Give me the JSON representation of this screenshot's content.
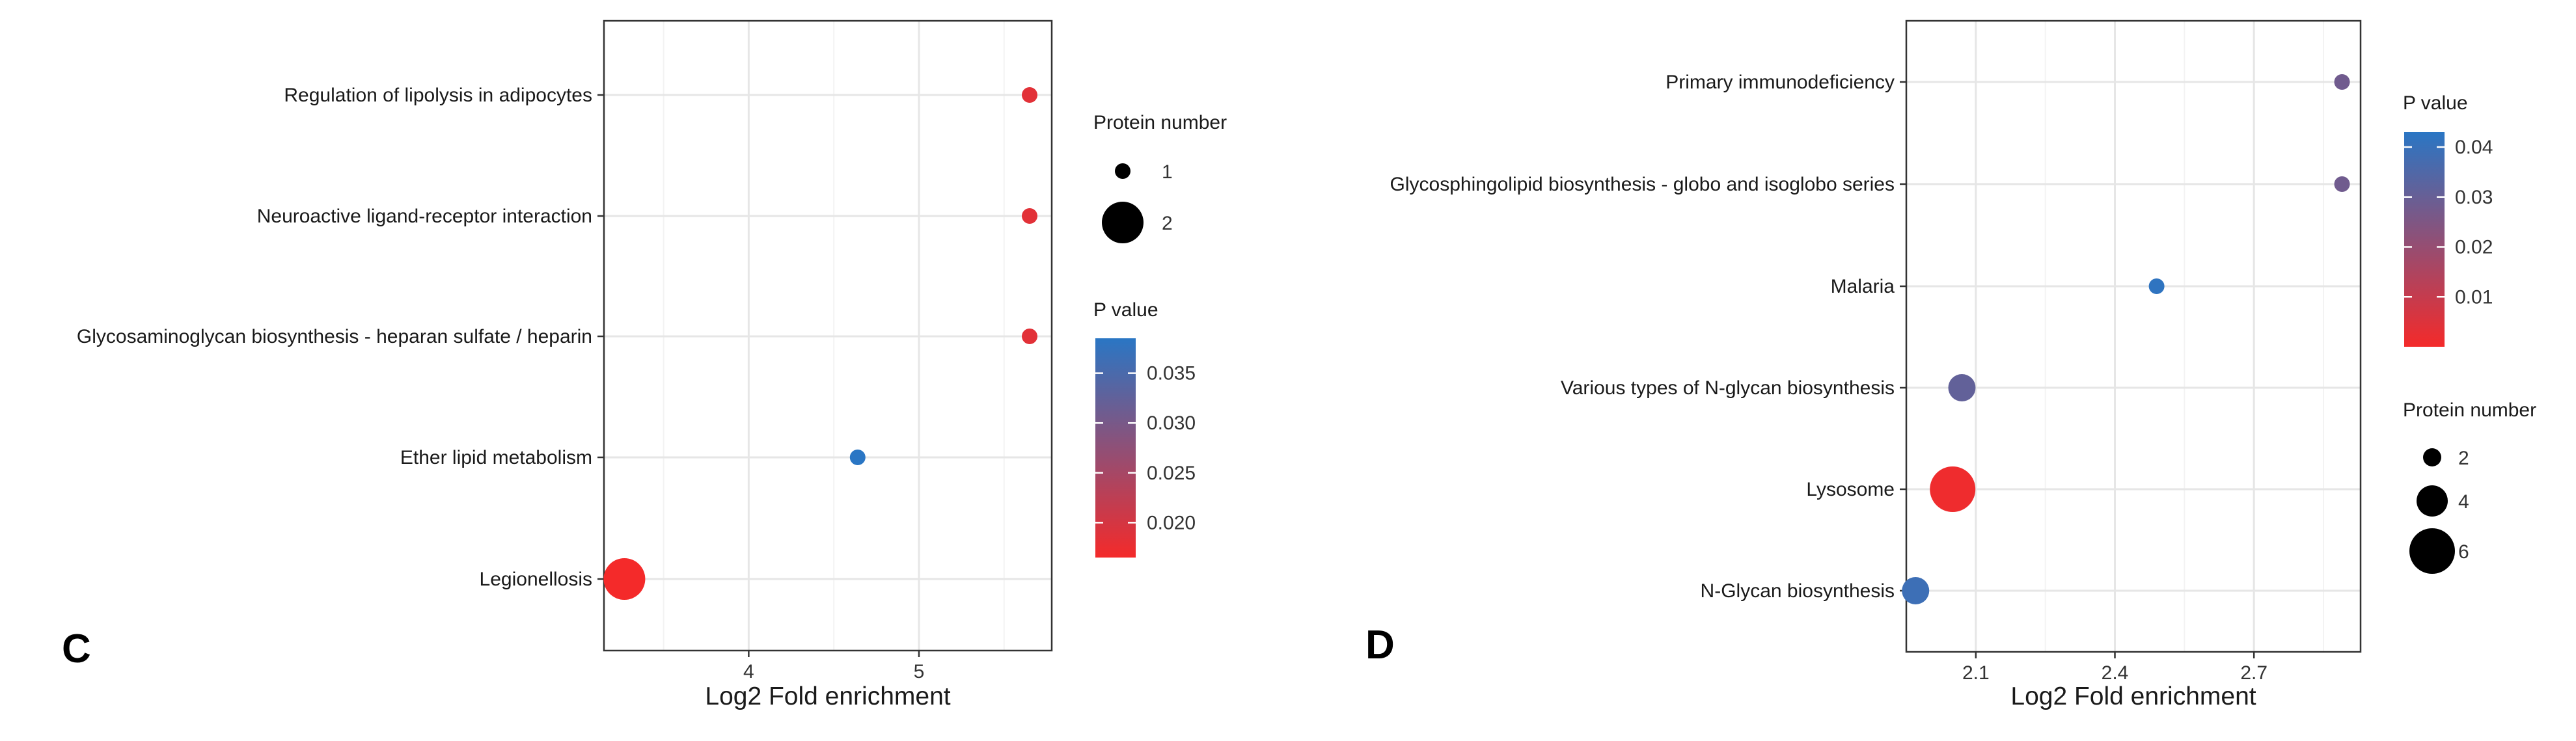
{
  "chart_data": [
    {
      "type": "scatter",
      "panel_label": "C",
      "xlabel": "Log2 Fold enrichment",
      "ylabel": "",
      "xlim": [
        3.15,
        5.78
      ],
      "xticks": [
        4,
        5
      ],
      "categories": [
        "Regulation of lipolysis in adipocytes",
        "Neuroactive ligand-receptor interaction",
        "Glycosaminoglycan biosynthesis - heparan sulfate / heparin",
        "Ether lipid metabolism",
        "Legionellosis"
      ],
      "points": [
        {
          "category": "Regulation of lipolysis in adipocytes",
          "x": 5.65,
          "protein_number": 1,
          "p_value": 0.0185
        },
        {
          "category": "Neuroactive ligand-receptor interaction",
          "x": 5.65,
          "protein_number": 1,
          "p_value": 0.0185
        },
        {
          "category": "Glycosaminoglycan biosynthesis - heparan sulfate / heparin",
          "x": 5.65,
          "protein_number": 1,
          "p_value": 0.0185
        },
        {
          "category": "Ether lipid metabolism",
          "x": 4.64,
          "protein_number": 1,
          "p_value": 0.0385
        },
        {
          "category": "Legionellosis",
          "x": 3.27,
          "protein_number": 2,
          "p_value": 0.0165
        }
      ],
      "size_legend": {
        "title": "Protein number",
        "values": [
          1,
          2
        ]
      },
      "color_legend": {
        "title": "P value",
        "range": [
          0.0165,
          0.0385
        ],
        "ticks": [
          0.02,
          0.025,
          0.03,
          0.035
        ],
        "tick_labels": [
          "0.020",
          "0.025",
          "0.030",
          "0.035"
        ],
        "low_color": "#f42a2a",
        "high_color": "#2a76c4"
      }
    },
    {
      "type": "scatter",
      "panel_label": "D",
      "xlabel": "Log2 Fold enrichment",
      "ylabel": "",
      "xlim": [
        1.95,
        2.93
      ],
      "xticks": [
        2.1,
        2.4,
        2.7
      ],
      "categories": [
        "Primary immunodeficiency",
        "Glycosphingolipid biosynthesis - globo and isoglobo series",
        "Malaria",
        "Various types of N-glycan biosynthesis",
        "Lysosome",
        "N-Glycan biosynthesis"
      ],
      "points": [
        {
          "category": "Primary immunodeficiency",
          "x": 2.89,
          "protein_number": 1,
          "p_value": 0.028
        },
        {
          "category": "Glycosphingolipid biosynthesis - globo and isoglobo series",
          "x": 2.89,
          "protein_number": 1,
          "p_value": 0.028
        },
        {
          "category": "Malaria",
          "x": 2.49,
          "protein_number": 1,
          "p_value": 0.042
        },
        {
          "category": "Various types of N-glycan biosynthesis",
          "x": 2.07,
          "protein_number": 3,
          "p_value": 0.031
        },
        {
          "category": "Lysosome",
          "x": 2.05,
          "protein_number": 6,
          "p_value": 0.001
        },
        {
          "category": "N-Glycan biosynthesis",
          "x": 1.97,
          "protein_number": 3,
          "p_value": 0.039
        }
      ],
      "size_legend": {
        "title": "Protein number",
        "values": [
          2,
          4,
          6
        ]
      },
      "color_legend": {
        "title": "P value",
        "range": [
          0.0,
          0.043
        ],
        "ticks": [
          0.01,
          0.02,
          0.03,
          0.04
        ],
        "tick_labels": [
          "0.01",
          "0.02",
          "0.03",
          "0.04"
        ],
        "low_color": "#f42a2a",
        "high_color": "#2a76c4"
      }
    }
  ]
}
